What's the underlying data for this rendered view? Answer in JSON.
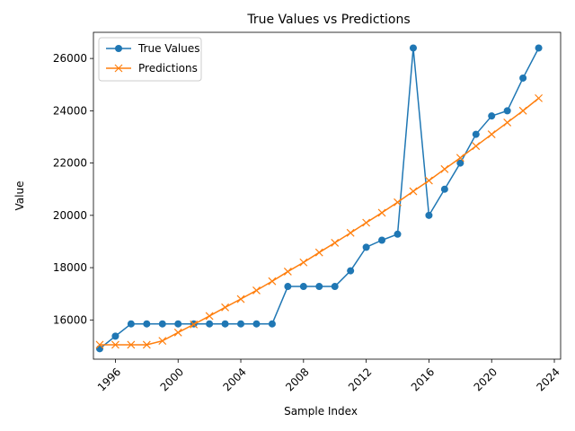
{
  "chart_data": {
    "type": "line",
    "title": "True Values vs Predictions",
    "xlabel": "Sample Index",
    "ylabel": "Value",
    "xlim": [
      1994.6,
      2024.4
    ],
    "ylim": [
      14500,
      27000
    ],
    "x": [
      1995,
      1996,
      1997,
      1998,
      1999,
      2000,
      2001,
      2002,
      2003,
      2004,
      2005,
      2006,
      2007,
      2008,
      2009,
      2010,
      2011,
      2012,
      2013,
      2014,
      2015,
      2016,
      2017,
      2018,
      2019,
      2020,
      2021,
      2022,
      2023
    ],
    "x_ticks": [
      1996,
      2000,
      2004,
      2008,
      2012,
      2016,
      2020,
      2024
    ],
    "y_ticks": [
      16000,
      18000,
      20000,
      22000,
      24000,
      26000
    ],
    "grid": false,
    "legend_position": "top-left",
    "series": [
      {
        "name": "True Values",
        "marker": "circle",
        "color": "#1f77b4",
        "values": [
          14900,
          15380,
          15850,
          15850,
          15850,
          15850,
          15850,
          15850,
          15850,
          15850,
          15850,
          15850,
          17280,
          17280,
          17280,
          17280,
          17880,
          18780,
          19050,
          19280,
          26400,
          20000,
          21000,
          22000,
          23100,
          23800,
          24000,
          25250,
          26400
        ]
      },
      {
        "name": "Predictions",
        "marker": "x",
        "color": "#ff7f0e",
        "values": [
          15050,
          15050,
          15050,
          15050,
          15200,
          15520,
          15830,
          16150,
          16480,
          16800,
          17130,
          17480,
          17850,
          18200,
          18580,
          18950,
          19330,
          19720,
          20100,
          20500,
          20920,
          21330,
          21770,
          22200,
          22650,
          23100,
          23550,
          24000,
          24480
        ]
      }
    ]
  }
}
